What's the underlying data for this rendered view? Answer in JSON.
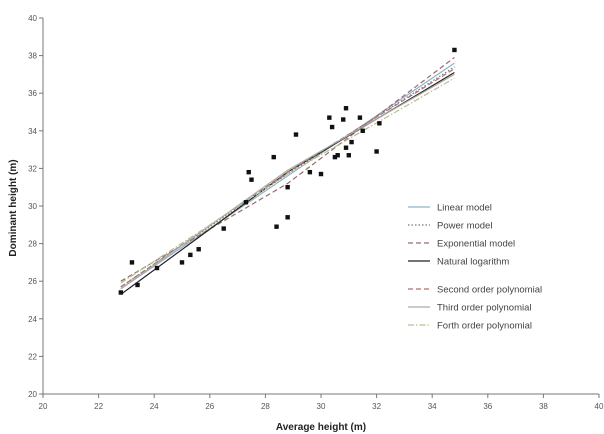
{
  "chart_data": {
    "type": "scatter",
    "xlabel": "Average height (m)",
    "ylabel": "Dominant  height (m)",
    "xlim": [
      20,
      40
    ],
    "ylim": [
      20,
      40
    ],
    "x_ticks": [
      "20",
      "22",
      "24",
      "26",
      "28",
      "30",
      "32",
      "34",
      "36",
      "38",
      "40"
    ],
    "y_ticks": [
      "20",
      "22",
      "24",
      "26",
      "28",
      "30",
      "32",
      "34",
      "36",
      "38",
      "40"
    ],
    "grid": false,
    "legend_position": "right",
    "points": {
      "x": [
        22.8,
        23.2,
        23.4,
        24.1,
        25.0,
        25.3,
        25.6,
        26.5,
        27.3,
        27.4,
        27.5,
        28.3,
        28.4,
        28.8,
        28.8,
        29.1,
        29.6,
        30.0,
        30.3,
        30.4,
        30.5,
        30.6,
        30.8,
        30.9,
        30.9,
        31.0,
        31.1,
        31.4,
        31.5,
        32.0,
        32.1,
        34.8
      ],
      "y": [
        25.4,
        27.0,
        25.8,
        26.7,
        27.0,
        27.4,
        27.7,
        28.8,
        30.2,
        31.8,
        31.4,
        32.6,
        28.9,
        31.0,
        29.4,
        33.8,
        31.8,
        31.7,
        34.7,
        34.2,
        32.6,
        32.7,
        34.6,
        33.1,
        35.2,
        32.7,
        33.4,
        34.7,
        34.0,
        32.9,
        34.4,
        38.3
      ]
    },
    "series": [
      {
        "name": "Linear model",
        "x": [
          22.8,
          34.8
        ],
        "y": [
          25.6,
          37.6
        ],
        "color": "#8fb3cc",
        "dash": "solid"
      },
      {
        "name": "Power model",
        "x": [
          22.8,
          28.8,
          34.8
        ],
        "y": [
          25.7,
          31.7,
          37.4
        ],
        "color": "#777777",
        "dash": "dotted"
      },
      {
        "name": "Exponential model",
        "x": [
          22.8,
          28.8,
          34.8
        ],
        "y": [
          26.0,
          31.2,
          37.9
        ],
        "color": "#9a6a6a",
        "dash": "dashed"
      },
      {
        "name": "Natural logarithm",
        "x": [
          22.8,
          28.8,
          34.8
        ],
        "y": [
          25.3,
          31.8,
          37.1
        ],
        "color": "#222222",
        "dash": "solid"
      },
      {
        "name": "Second order polynomial",
        "x": [
          22.8,
          28.8,
          34.8
        ],
        "y": [
          25.7,
          31.8,
          37.3
        ],
        "color": "#b07070",
        "dash": "dashed"
      },
      {
        "name": "Third order polynomial",
        "x": [
          22.8,
          28.8,
          34.8
        ],
        "y": [
          25.6,
          31.9,
          37.0
        ],
        "color": "#aaaaaa",
        "dash": "solid"
      },
      {
        "name": "Forth order polynomial",
        "x": [
          22.8,
          28.8,
          34.8
        ],
        "y": [
          25.9,
          31.7,
          36.8
        ],
        "color": "#b8bf8e",
        "dash": "dashdot"
      }
    ]
  }
}
